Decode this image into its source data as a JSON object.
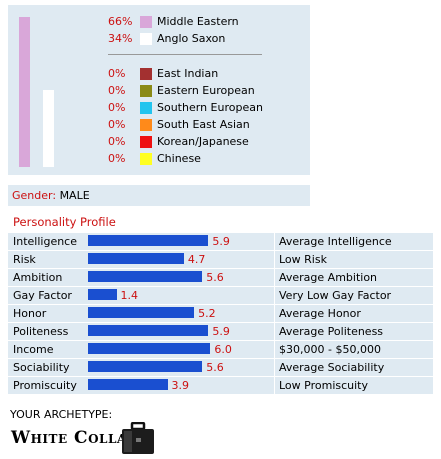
{
  "chart_data": [
    {
      "type": "bar",
      "title": "",
      "series": [
        {
          "name": "Middle Eastern",
          "pct": "66%",
          "value": 66,
          "color": "#d9a7d9"
        },
        {
          "name": "Anglo Saxon",
          "pct": "34%",
          "value": 34,
          "color": "#ffffff"
        },
        {
          "name": "East Indian",
          "pct": "0%",
          "value": 0,
          "color": "#a33030"
        },
        {
          "name": "Eastern European",
          "pct": "0%",
          "value": 0,
          "color": "#8a8a16"
        },
        {
          "name": "Southern European",
          "pct": "0%",
          "value": 0,
          "color": "#22c4ee"
        },
        {
          "name": "South East Asian",
          "pct": "0%",
          "value": 0,
          "color": "#ff8a1a"
        },
        {
          "name": "Korean/Japanese",
          "pct": "0%",
          "value": 0,
          "color": "#ee1111"
        },
        {
          "name": "Chinese",
          "pct": "0%",
          "value": 0,
          "color": "#ffff22"
        }
      ]
    },
    {
      "type": "bar",
      "title": "Personality Profile",
      "xlim": [
        0,
        10
      ],
      "categories": [
        "Intelligence",
        "Risk",
        "Ambition",
        "Gay Factor",
        "Honor",
        "Politeness",
        "Income",
        "Sociability",
        "Promiscuity"
      ],
      "values": [
        5.9,
        4.7,
        5.6,
        1.4,
        5.2,
        5.9,
        6.0,
        5.6,
        3.9
      ],
      "value_labels": [
        "5.9",
        "4.7",
        "5.6",
        "1.4",
        "5.2",
        "5.9",
        "6.0",
        "5.6",
        "3.9"
      ],
      "descriptions": [
        "Average Intelligence",
        "Low Risk",
        "Average Ambition",
        "Very Low Gay Factor",
        "Average Honor",
        "Average Politeness",
        "$30,000 - $50,000",
        "Average Sociability",
        "Low Promiscuity"
      ],
      "bar_color": "#1a4fd0"
    }
  ],
  "gender": {
    "label": "Gender:",
    "value": "MALE"
  },
  "archetype": {
    "label": "YOUR ARCHETYPE:",
    "name": "White Collar",
    "icon": "briefcase-icon"
  }
}
